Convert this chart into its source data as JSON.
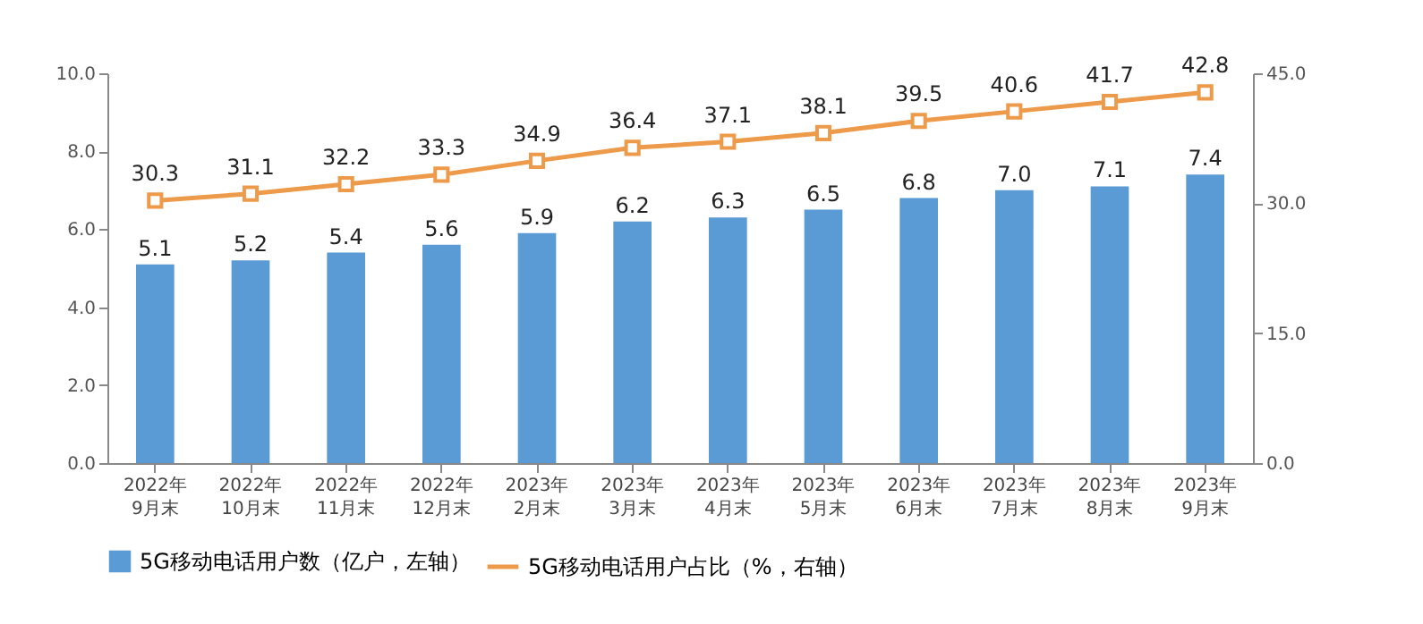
{
  "chart_data": {
    "type": "bar",
    "categories": [
      "2022年\n9月末",
      "2022年\n10月末",
      "2022年\n11月末",
      "2022年\n12月末",
      "2023年\n2月末",
      "2023年\n3月末",
      "2023年\n4月末",
      "2023年\n5月末",
      "2023年\n6月末",
      "2023年\n7月末",
      "2023年\n8月末",
      "2023年\n9月末"
    ],
    "series": [
      {
        "name": "5G移动电话用户数（亿户，左轴）",
        "color": "#5b9bd5",
        "values": [
          5.1,
          5.2,
          5.4,
          5.6,
          5.9,
          6.2,
          6.3,
          6.5,
          6.8,
          7.0,
          7.1,
          7.4
        ],
        "value_labels": [
          "5.1",
          "5.2",
          "5.4",
          "5.6",
          "5.9",
          "6.2",
          "6.3",
          "6.5",
          "6.8",
          "7.0",
          "7.1",
          "7.4"
        ]
      },
      {
        "name": "5G移动电话用户占比（%，右轴）",
        "type": "line",
        "axis": "y2",
        "color": "#ed9a4a",
        "marker": "square",
        "values": [
          30.3,
          31.1,
          32.2,
          33.3,
          34.9,
          36.4,
          37.1,
          38.1,
          39.5,
          40.6,
          41.7,
          42.8
        ],
        "value_labels": [
          "30.3",
          "31.1",
          "32.2",
          "33.3",
          "34.9",
          "36.4",
          "37.1",
          "38.1",
          "39.5",
          "40.6",
          "41.7",
          "42.8"
        ]
      }
    ],
    "ylim": [
      0,
      10
    ],
    "yticks": [
      {
        "value": 0,
        "label": "0.0"
      },
      {
        "value": 2,
        "label": "2.0"
      },
      {
        "value": 4,
        "label": "4.0"
      },
      {
        "value": 6,
        "label": "6.0"
      },
      {
        "value": 8,
        "label": "8.0"
      },
      {
        "value": 10,
        "label": "10.0"
      }
    ],
    "y2lim": [
      0,
      45
    ],
    "y2ticks": [
      {
        "value": 0,
        "label": "0.0"
      },
      {
        "value": 15,
        "label": "15.0"
      },
      {
        "value": 30,
        "label": "30.0"
      },
      {
        "value": 45,
        "label": "45.0"
      }
    ],
    "legend": "bottom",
    "grid": false
  }
}
